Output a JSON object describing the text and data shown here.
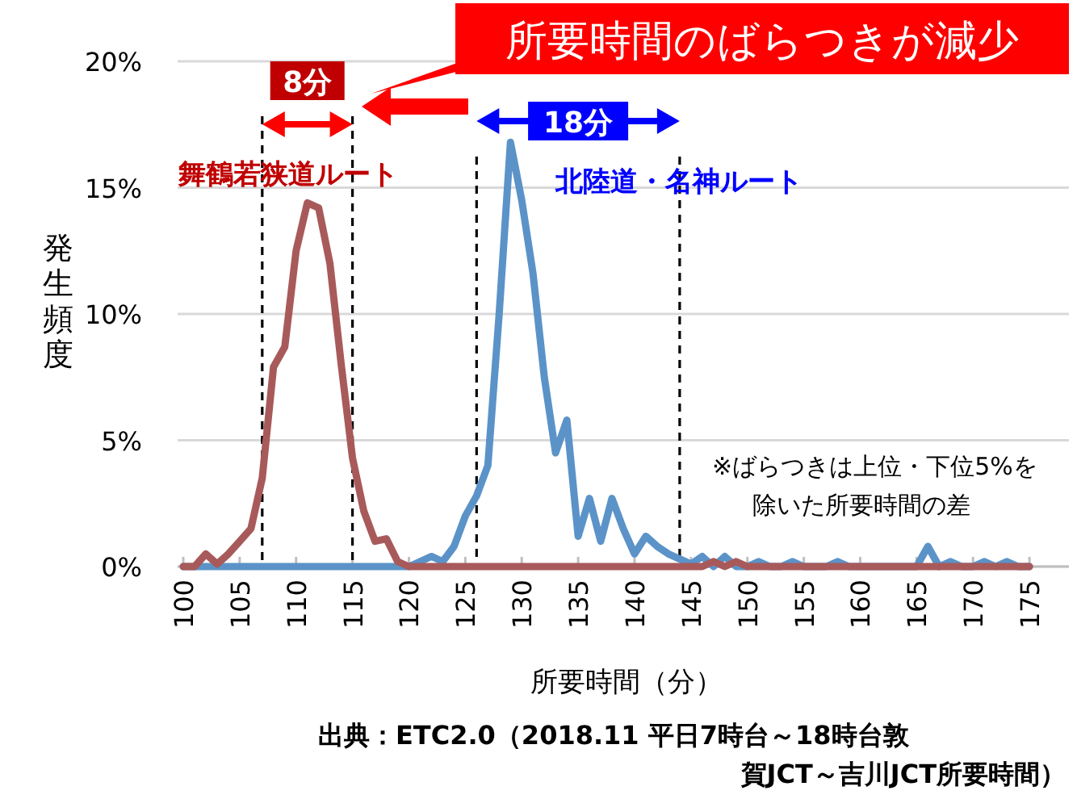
{
  "chart_data": {
    "type": "line",
    "title": "所要時間のばらつきが減少",
    "xlabel": "所要時間（分）",
    "ylabel": "発生頻度",
    "x": [
      100,
      101,
      102,
      103,
      104,
      105,
      106,
      107,
      108,
      109,
      110,
      111,
      112,
      113,
      114,
      115,
      116,
      117,
      118,
      119,
      120,
      121,
      122,
      123,
      124,
      125,
      126,
      127,
      128,
      129,
      130,
      131,
      132,
      133,
      134,
      135,
      136,
      137,
      138,
      139,
      140,
      141,
      142,
      143,
      144,
      145,
      146,
      147,
      148,
      149,
      150,
      151,
      152,
      153,
      154,
      155,
      156,
      157,
      158,
      159,
      160,
      161,
      162,
      163,
      164,
      165,
      166,
      167,
      168,
      169,
      170,
      171,
      172,
      173,
      174,
      175
    ],
    "xlim": [
      99.5,
      178.5
    ],
    "xticks": [
      100,
      105,
      110,
      115,
      120,
      125,
      130,
      135,
      140,
      145,
      150,
      155,
      160,
      165,
      170,
      175
    ],
    "ylim": [
      0,
      20
    ],
    "yticks": [
      {
        "value": 0,
        "label": "0%"
      },
      {
        "value": 5,
        "label": "5%"
      },
      {
        "value": 10,
        "label": "10%"
      },
      {
        "value": 15,
        "label": "15%"
      },
      {
        "value": 20,
        "label": "20%"
      }
    ],
    "grid": "y",
    "line_style": "solid",
    "series": [
      {
        "name": "舞鶴若狭道ルート",
        "color": "#a85a5a",
        "values": [
          0,
          0,
          0.5,
          0.1,
          0.5,
          1,
          1.5,
          3.5,
          7.9,
          8.7,
          12.5,
          14.4,
          14.2,
          12,
          8,
          4.3,
          2.2,
          1,
          1.1,
          0.2,
          0,
          0,
          0,
          0,
          0,
          0,
          0,
          0,
          0,
          0,
          0,
          0,
          0,
          0,
          0,
          0,
          0,
          0,
          0,
          0,
          0,
          0,
          0,
          0,
          0,
          0,
          0,
          0.2,
          0,
          0.2,
          0,
          0,
          0,
          0,
          0,
          0,
          0,
          0,
          0,
          0,
          0,
          0,
          0,
          0,
          0,
          0,
          0,
          0,
          0,
          0,
          0,
          0,
          0,
          0,
          0,
          0
        ]
      },
      {
        "name": "北陸道・名神ルート",
        "color": "#5b93c8",
        "values": [
          0,
          0,
          0,
          0,
          0,
          0,
          0,
          0,
          0,
          0,
          0,
          0,
          0,
          0,
          0,
          0,
          0,
          0,
          0,
          0,
          0,
          0.2,
          0.4,
          0.2,
          0.8,
          2,
          2.8,
          4,
          10,
          16.8,
          14.5,
          11.6,
          7.5,
          4.5,
          5.8,
          1.2,
          2.7,
          1,
          2.7,
          1.5,
          0.5,
          1.2,
          0.8,
          0.5,
          0.3,
          0.1,
          0.4,
          0,
          0.4,
          0,
          0,
          0.2,
          0,
          0,
          0.2,
          0,
          0,
          0,
          0.2,
          0,
          0,
          0,
          0,
          0,
          0,
          0,
          0.8,
          0,
          0.2,
          0,
          0,
          0.2,
          0,
          0.2,
          0,
          0
        ]
      }
    ],
    "ref_lines": [
      {
        "axis": "x",
        "value": 107,
        "label": null,
        "color": "#000000",
        "line_style": "dashed"
      },
      {
        "axis": "x",
        "value": 115,
        "label": null,
        "color": "#000000",
        "line_style": "dashed"
      },
      {
        "axis": "x",
        "value": 126,
        "label": null,
        "color": "#000000",
        "line_style": "dashed"
      },
      {
        "axis": "x",
        "value": 144,
        "label": null,
        "color": "#000000",
        "line_style": "dashed"
      }
    ],
    "annotations": [
      "8分",
      "18分",
      "※ばらつきは上位・下位5%を除いた所要時間の差",
      "出典：ETC2.0（2018.11 平日7時台～18時台敦賀JCT～吉川JCT所要時間）"
    ]
  }
}
